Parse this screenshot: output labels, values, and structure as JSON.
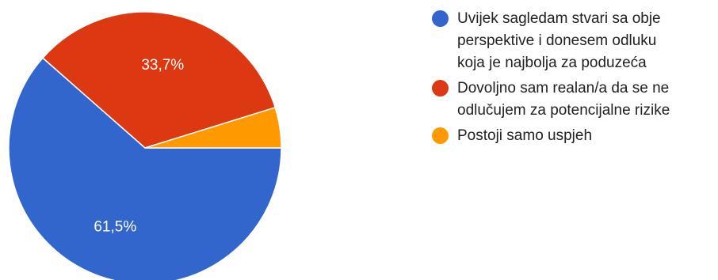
{
  "chart_data": {
    "type": "pie",
    "title": "",
    "slices": [
      {
        "label": "Uvijek sagledam stvari sa obje perspektive i donesem odluku koja je najbolja za poduzeća",
        "legend_lines": [
          "Uvijek sagledam stvari sa obje",
          "perspektive i donesem odluku",
          "koja je najbolja za poduzeća"
        ],
        "value": 61.5,
        "display_label": "61,5%",
        "color": "#3366cc"
      },
      {
        "label": "Dovoljno sam realan/a da se ne odlučujem za potencijalne rizike",
        "legend_lines": [
          "Dovoljno sam realan/a da se ne",
          "odlučujem za potencijalne rizike"
        ],
        "value": 33.7,
        "display_label": "33,7%",
        "color": "#dc3912"
      },
      {
        "label": "Postoji samo uspjeh",
        "legend_lines": [
          "Postoji samo uspjeh"
        ],
        "value": 4.8,
        "display_label": "",
        "color": "#ff9900"
      }
    ],
    "legend_position": "right"
  }
}
